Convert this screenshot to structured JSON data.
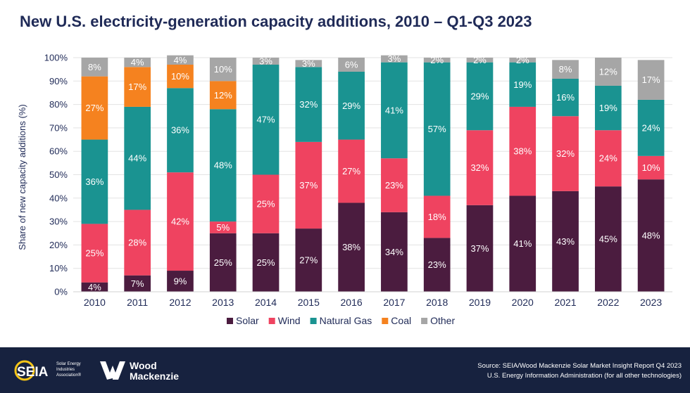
{
  "title": "New U.S. electricity-generation capacity additions, 2010 – Q1-Q3 2023",
  "footer": {
    "source_line1": "Source: SEIA/Wood Mackenzie Solar Market Insight Report Q4 2023",
    "source_line2": "U.S. Energy Information Administration (for all other technologies)",
    "seia_logo_text": "SEIA",
    "seia_logo_sub": [
      "Solar Energy",
      "Industries",
      "Association®"
    ],
    "wm_logo_line1": "Wood",
    "wm_logo_line2": "Mackenzie"
  },
  "chart_data": {
    "type": "bar",
    "stacked": true,
    "title": "New U.S. electricity-generation capacity additions, 2010 – Q1-Q3 2023",
    "xlabel": "",
    "ylabel": "Share of new capacity additions (%)",
    "ylim": [
      0,
      100
    ],
    "yticks": [
      0,
      10,
      20,
      30,
      40,
      50,
      60,
      70,
      80,
      90,
      100
    ],
    "ytick_labels": [
      "0%",
      "10%",
      "20%",
      "30%",
      "40%",
      "50%",
      "60%",
      "70%",
      "80%",
      "90%",
      "100%"
    ],
    "legend_position": "bottom",
    "categories": [
      "2010",
      "2011",
      "2012",
      "2013",
      "2014",
      "2015",
      "2016",
      "2017",
      "2018",
      "2019",
      "2020",
      "2021",
      "2022",
      "2023"
    ],
    "series": [
      {
        "name": "Solar",
        "color": "#4b1c3f",
        "values": [
          4,
          7,
          9,
          25,
          25,
          27,
          38,
          34,
          23,
          37,
          41,
          43,
          45,
          48
        ]
      },
      {
        "name": "Wind",
        "color": "#ef4360",
        "values": [
          25,
          28,
          42,
          5,
          25,
          37,
          27,
          23,
          18,
          32,
          38,
          32,
          24,
          10
        ]
      },
      {
        "name": "Natural Gas",
        "color": "#1a9391",
        "values": [
          36,
          44,
          36,
          48,
          47,
          32,
          29,
          41,
          57,
          29,
          19,
          16,
          19,
          24
        ]
      },
      {
        "name": "Coal",
        "color": "#f5821f",
        "values": [
          27,
          17,
          10,
          12,
          0,
          0,
          0,
          0,
          0,
          0,
          0,
          0,
          0,
          0
        ]
      },
      {
        "name": "Other",
        "color": "#a6a6a6",
        "values": [
          8,
          4,
          4,
          10,
          3,
          3,
          6,
          3,
          2,
          2,
          2,
          8,
          12,
          17
        ]
      }
    ]
  }
}
